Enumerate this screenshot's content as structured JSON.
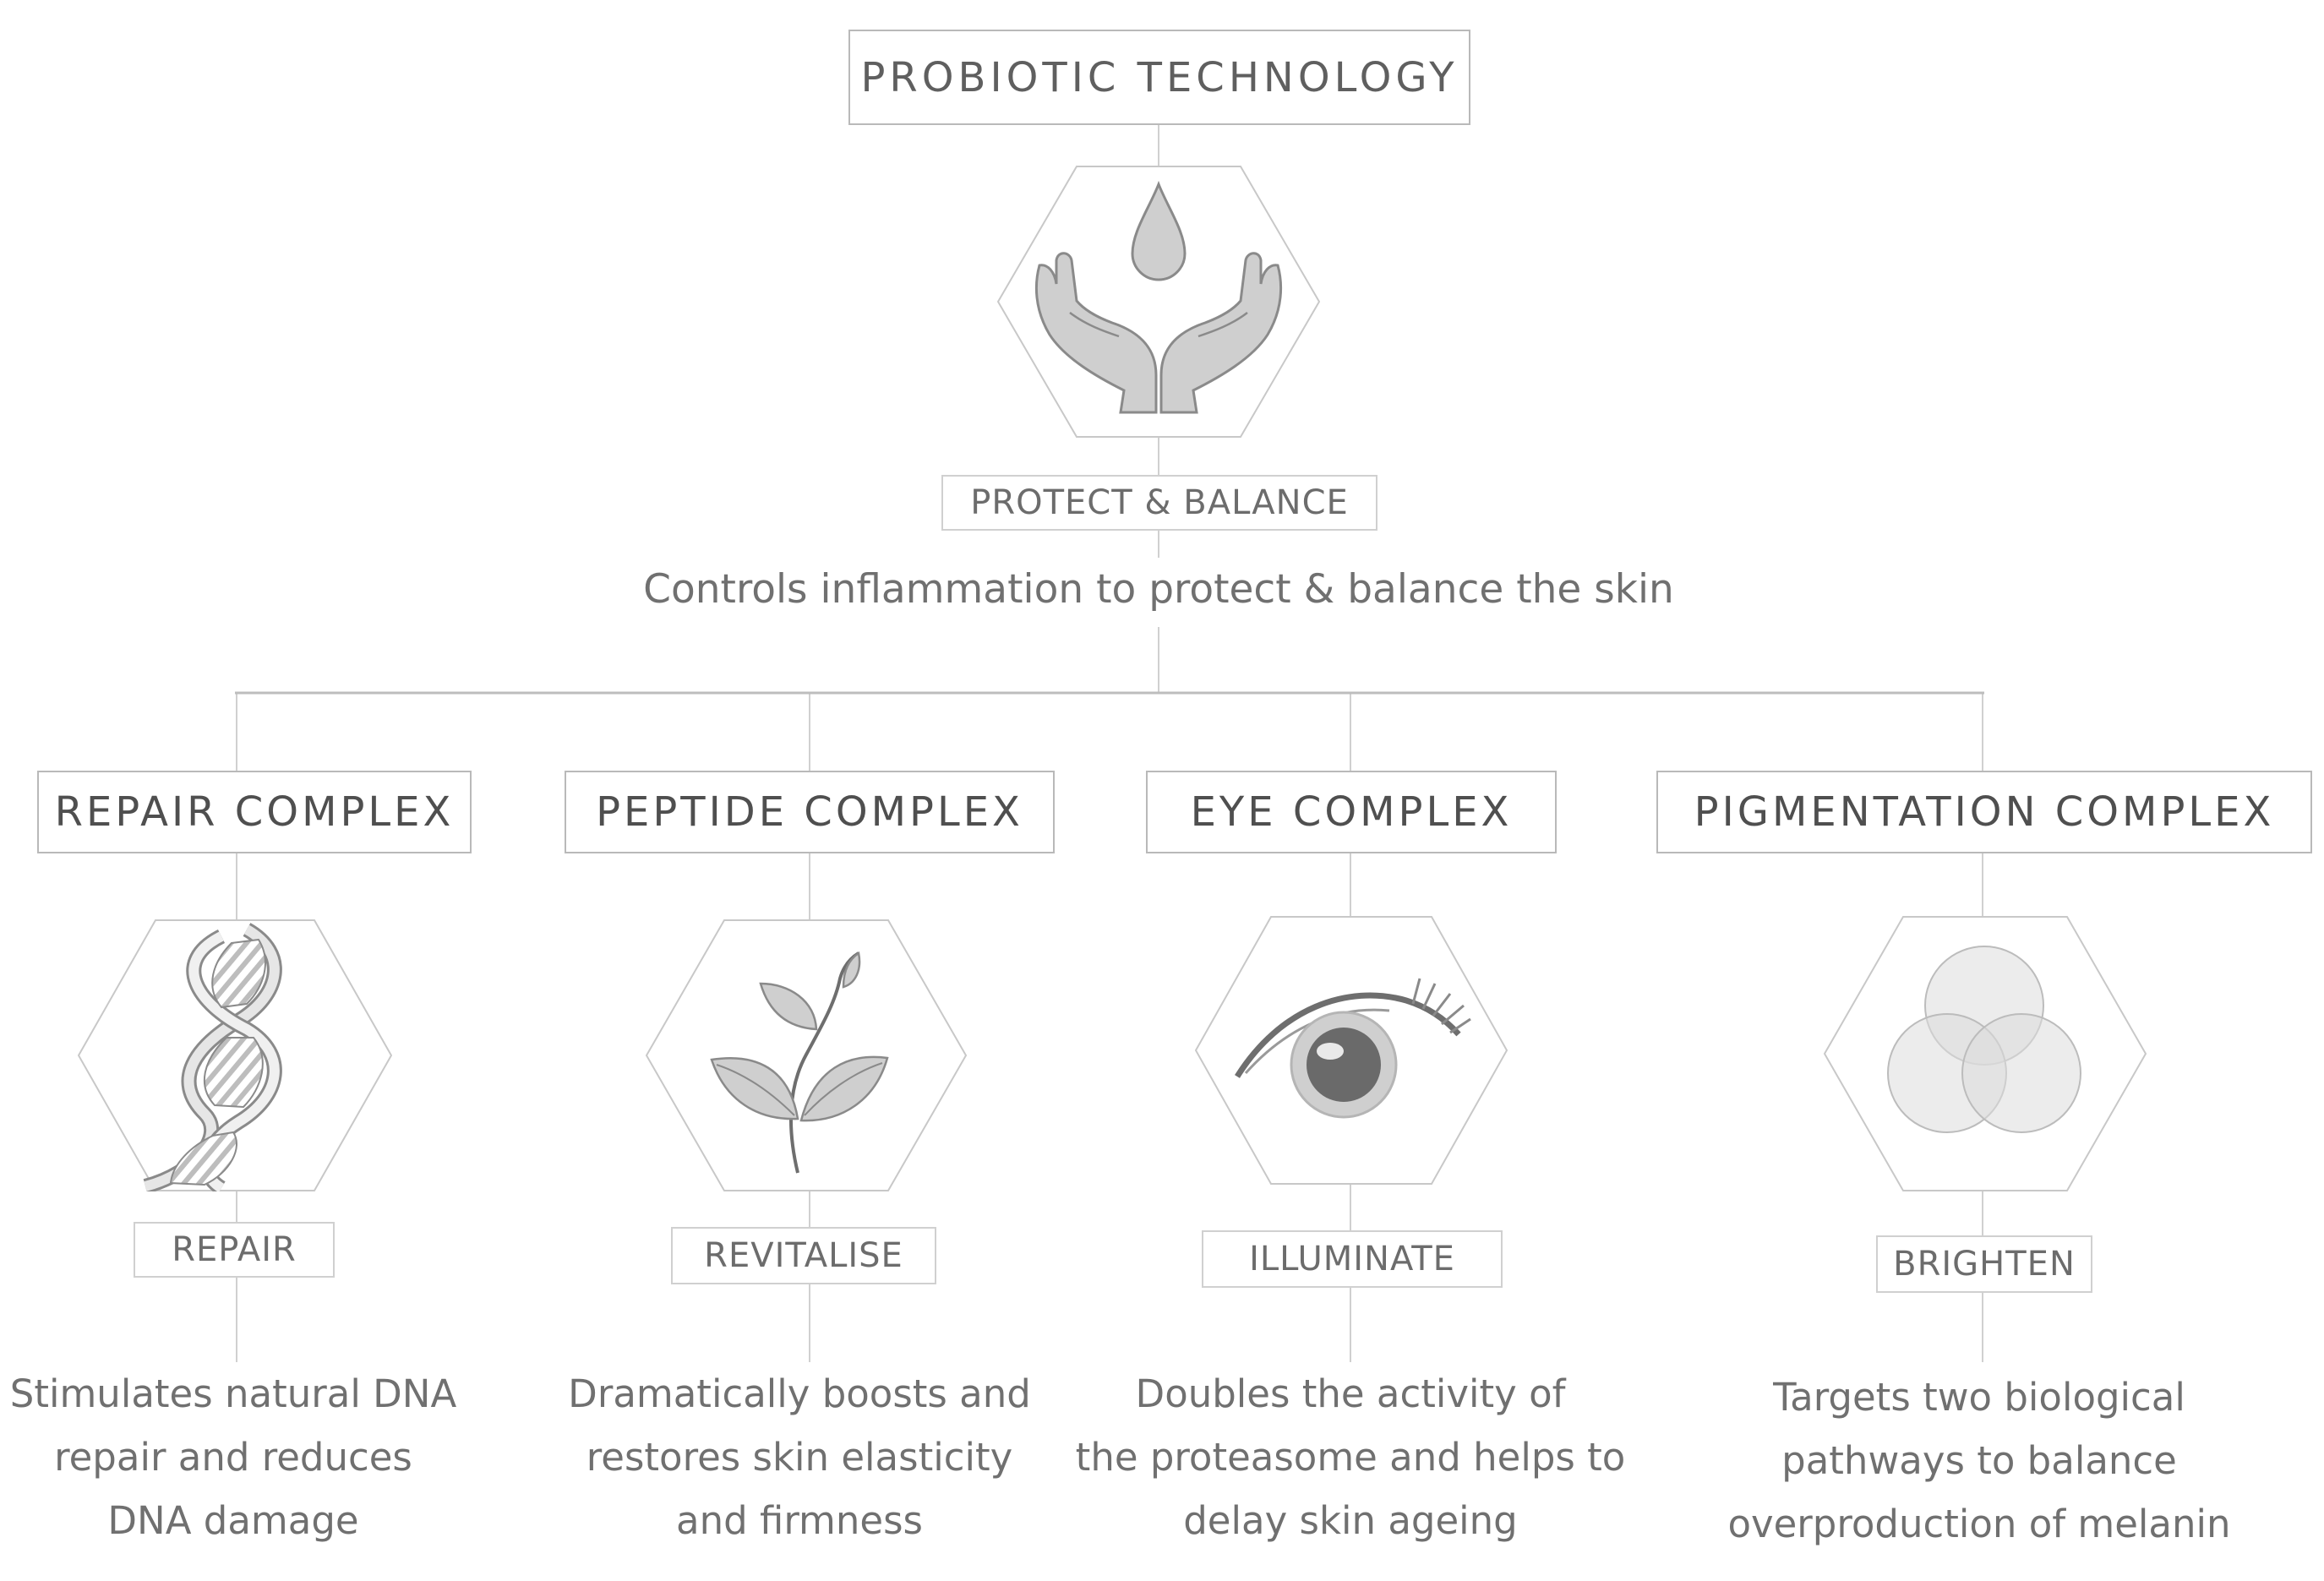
{
  "top": {
    "title": "PROBIOTIC TECHNOLOGY",
    "benefit": "PROTECT & BALANCE",
    "description": "Controls inflammation to protect & balance the skin",
    "icon": "hands-water-drop-icon"
  },
  "complexes": [
    {
      "title": "REPAIR COMPLEX",
      "benefit": "REPAIR",
      "description": [
        "Stimulates natural DNA",
        "repair and reduces",
        "DNA damage"
      ],
      "icon": "dna-helix-icon"
    },
    {
      "title": "PEPTIDE COMPLEX",
      "benefit": "REVITALISE",
      "description": [
        "Dramatically boosts and",
        "restores skin elasticity",
        "and firmness"
      ],
      "icon": "plant-sprout-icon"
    },
    {
      "title": "EYE COMPLEX",
      "benefit": "ILLUMINATE",
      "description": [
        "Doubles the activity of",
        "the proteasome and helps to",
        "delay skin ageing"
      ],
      "icon": "eye-icon"
    },
    {
      "title": "PIGMENTATION COMPLEX",
      "benefit": "BRIGHTEN",
      "description": [
        "Targets two biological",
        "pathways to balance",
        "overproduction of melanin"
      ],
      "icon": "overlapping-circles-icon"
    }
  ],
  "colors": {
    "line": "#c8c8c8",
    "border": "#b9b9b9",
    "icon_fill": "#cfcfcf",
    "icon_stroke": "#8a8a8a"
  }
}
